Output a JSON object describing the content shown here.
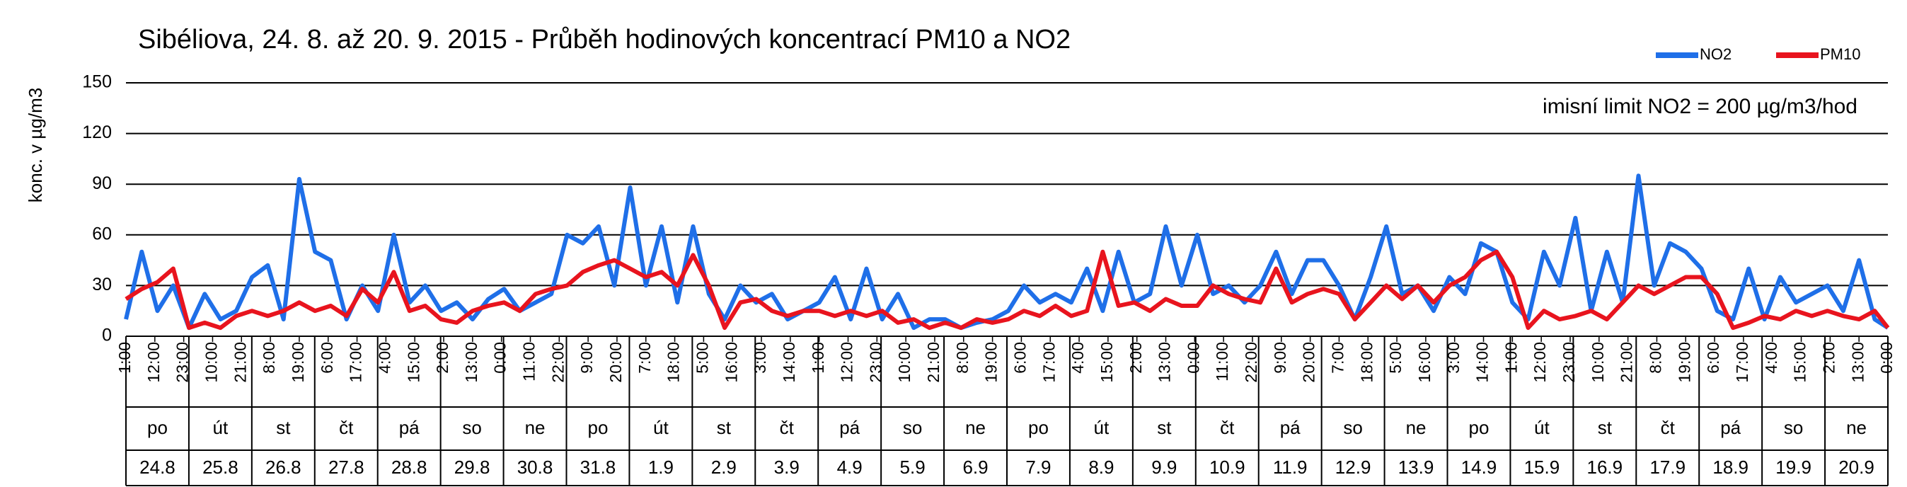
{
  "chart_data": {
    "type": "line",
    "title": "Sibéliova, 24. 8. až 20. 9. 2015 - Průběh hodinových koncentrací PM10 a NO2",
    "y_label": "konc. v µg/m3",
    "annotation": "imisní limit NO2 = 200 µg/m3/hod",
    "ylim": [
      0,
      150
    ],
    "yticks": [
      0,
      30,
      60,
      90,
      120,
      150
    ],
    "grid": true,
    "legend": "top-right",
    "xlim": [
      0,
      671
    ],
    "xticks": [
      {
        "value": 0,
        "label": "1:00"
      },
      {
        "value": 11,
        "label": "12:00"
      },
      {
        "value": 22,
        "label": "23:00"
      },
      {
        "value": 33,
        "label": "10:00"
      },
      {
        "value": 44,
        "label": "21:00"
      },
      {
        "value": 55,
        "label": "8:00"
      },
      {
        "value": 66,
        "label": "19:00"
      },
      {
        "value": 77,
        "label": "6:00"
      },
      {
        "value": 88,
        "label": "17:00"
      },
      {
        "value": 99,
        "label": "4:00"
      },
      {
        "value": 110,
        "label": "15:00"
      },
      {
        "value": 121,
        "label": "2:00"
      },
      {
        "value": 132,
        "label": "13:00"
      },
      {
        "value": 143,
        "label": "0:00"
      },
      {
        "value": 154,
        "label": "11:00"
      },
      {
        "value": 165,
        "label": "22:00"
      },
      {
        "value": 176,
        "label": "9:00"
      },
      {
        "value": 187,
        "label": "20:00"
      },
      {
        "value": 198,
        "label": "7:00"
      },
      {
        "value": 209,
        "label": "18:00"
      },
      {
        "value": 220,
        "label": "5:00"
      },
      {
        "value": 231,
        "label": "16:00"
      },
      {
        "value": 242,
        "label": "3:00"
      },
      {
        "value": 253,
        "label": "14:00"
      },
      {
        "value": 264,
        "label": "1:00"
      },
      {
        "value": 275,
        "label": "12:00"
      },
      {
        "value": 286,
        "label": "23:00"
      },
      {
        "value": 297,
        "label": "10:00"
      },
      {
        "value": 308,
        "label": "21:00"
      },
      {
        "value": 319,
        "label": "8:00"
      },
      {
        "value": 330,
        "label": "19:00"
      },
      {
        "value": 341,
        "label": "6:00"
      },
      {
        "value": 352,
        "label": "17:00"
      },
      {
        "value": 363,
        "label": "4:00"
      },
      {
        "value": 374,
        "label": "15:00"
      },
      {
        "value": 385,
        "label": "2:00"
      },
      {
        "value": 396,
        "label": "13:00"
      },
      {
        "value": 407,
        "label": "0:00"
      },
      {
        "value": 418,
        "label": "11:00"
      },
      {
        "value": 429,
        "label": "22:00"
      },
      {
        "value": 440,
        "label": "9:00"
      },
      {
        "value": 451,
        "label": "20:00"
      },
      {
        "value": 462,
        "label": "7:00"
      },
      {
        "value": 473,
        "label": "18:00"
      },
      {
        "value": 484,
        "label": "5:00"
      },
      {
        "value": 495,
        "label": "16:00"
      },
      {
        "value": 506,
        "label": "3:00"
      },
      {
        "value": 517,
        "label": "14:00"
      },
      {
        "value": 528,
        "label": "1:00"
      },
      {
        "value": 539,
        "label": "12:00"
      },
      {
        "value": 550,
        "label": "23:00"
      },
      {
        "value": 561,
        "label": "10:00"
      },
      {
        "value": 572,
        "label": "21:00"
      },
      {
        "value": 583,
        "label": "8:00"
      },
      {
        "value": 594,
        "label": "19:00"
      },
      {
        "value": 605,
        "label": "6:00"
      },
      {
        "value": 616,
        "label": "17:00"
      },
      {
        "value": 627,
        "label": "4:00"
      },
      {
        "value": 638,
        "label": "15:00"
      },
      {
        "value": 649,
        "label": "2:00"
      },
      {
        "value": 660,
        "label": "13:00"
      },
      {
        "value": 671,
        "label": "0:00"
      }
    ],
    "day_names": [
      "po",
      "út",
      "st",
      "čt",
      "pá",
      "so",
      "ne",
      "po",
      "út",
      "st",
      "čt",
      "pá",
      "so",
      "ne",
      "po",
      "út",
      "st",
      "čt",
      "pá",
      "so",
      "ne",
      "po",
      "út",
      "st",
      "čt",
      "pá",
      "so",
      "ne"
    ],
    "dates": [
      "24.8",
      "25.8",
      "26.8",
      "27.8",
      "28.8",
      "29.8",
      "30.8",
      "31.8",
      "1.9",
      "2.9",
      "3.9",
      "4.9",
      "5.9",
      "6.9",
      "7.9",
      "8.9",
      "9.9",
      "10.9",
      "11.9",
      "12.9",
      "13.9",
      "14.9",
      "15.9",
      "16.9",
      "17.9",
      "18.9",
      "19.9",
      "20.9"
    ],
    "x": [
      0,
      6,
      12,
      18,
      24,
      30,
      36,
      42,
      48,
      54,
      60,
      66,
      72,
      78,
      84,
      90,
      96,
      102,
      108,
      114,
      120,
      126,
      132,
      138,
      144,
      150,
      156,
      162,
      168,
      174,
      180,
      186,
      192,
      198,
      204,
      210,
      216,
      222,
      228,
      234,
      240,
      246,
      252,
      258,
      264,
      270,
      276,
      282,
      288,
      294,
      300,
      306,
      312,
      318,
      324,
      330,
      336,
      342,
      348,
      354,
      360,
      366,
      372,
      378,
      384,
      390,
      396,
      402,
      408,
      414,
      420,
      426,
      432,
      438,
      444,
      450,
      456,
      462,
      468,
      474,
      480,
      486,
      492,
      498,
      504,
      510,
      516,
      522,
      528,
      534,
      540,
      546,
      552,
      558,
      564,
      570,
      576,
      582,
      588,
      594,
      600,
      606,
      612,
      618,
      624,
      630,
      636,
      642,
      648,
      654,
      660,
      666,
      671
    ],
    "series": [
      {
        "name": "NO2",
        "color": "#1f6fe8",
        "values": [
          10,
          50,
          15,
          30,
          5,
          25,
          10,
          15,
          35,
          42,
          10,
          93,
          50,
          45,
          10,
          30,
          15,
          60,
          20,
          30,
          15,
          20,
          10,
          22,
          28,
          15,
          20,
          25,
          60,
          55,
          65,
          30,
          88,
          30,
          65,
          20,
          65,
          25,
          10,
          30,
          20,
          25,
          10,
          15,
          20,
          35,
          10,
          40,
          10,
          25,
          5,
          10,
          10,
          5,
          8,
          10,
          15,
          30,
          20,
          25,
          20,
          40,
          15,
          50,
          20,
          25,
          65,
          30,
          60,
          25,
          30,
          20,
          30,
          50,
          25,
          45,
          45,
          30,
          10,
          35,
          65,
          25,
          30,
          15,
          35,
          25,
          55,
          50,
          20,
          10,
          50,
          30,
          70,
          15,
          50,
          20,
          95,
          30,
          55,
          50,
          40,
          15,
          10,
          40,
          10,
          35,
          20,
          25,
          30,
          15,
          45,
          10,
          5
        ]
      },
      {
        "name": "PM10",
        "color": "#e8141e",
        "values": [
          22,
          28,
          32,
          40,
          5,
          8,
          5,
          12,
          15,
          12,
          15,
          20,
          15,
          18,
          12,
          28,
          20,
          38,
          15,
          18,
          10,
          8,
          15,
          18,
          20,
          15,
          25,
          28,
          30,
          38,
          42,
          45,
          40,
          35,
          38,
          30,
          48,
          30,
          5,
          20,
          22,
          15,
          12,
          15,
          15,
          12,
          15,
          12,
          15,
          8,
          10,
          5,
          8,
          5,
          10,
          8,
          10,
          15,
          12,
          18,
          12,
          15,
          50,
          18,
          20,
          15,
          22,
          18,
          18,
          30,
          25,
          22,
          20,
          40,
          20,
          25,
          28,
          25,
          10,
          20,
          30,
          22,
          30,
          20,
          30,
          35,
          45,
          50,
          35,
          5,
          15,
          10,
          12,
          15,
          10,
          20,
          30,
          25,
          30,
          35,
          35,
          25,
          5,
          8,
          12,
          10,
          15,
          12,
          15,
          12,
          10,
          15,
          5
        ]
      }
    ]
  }
}
